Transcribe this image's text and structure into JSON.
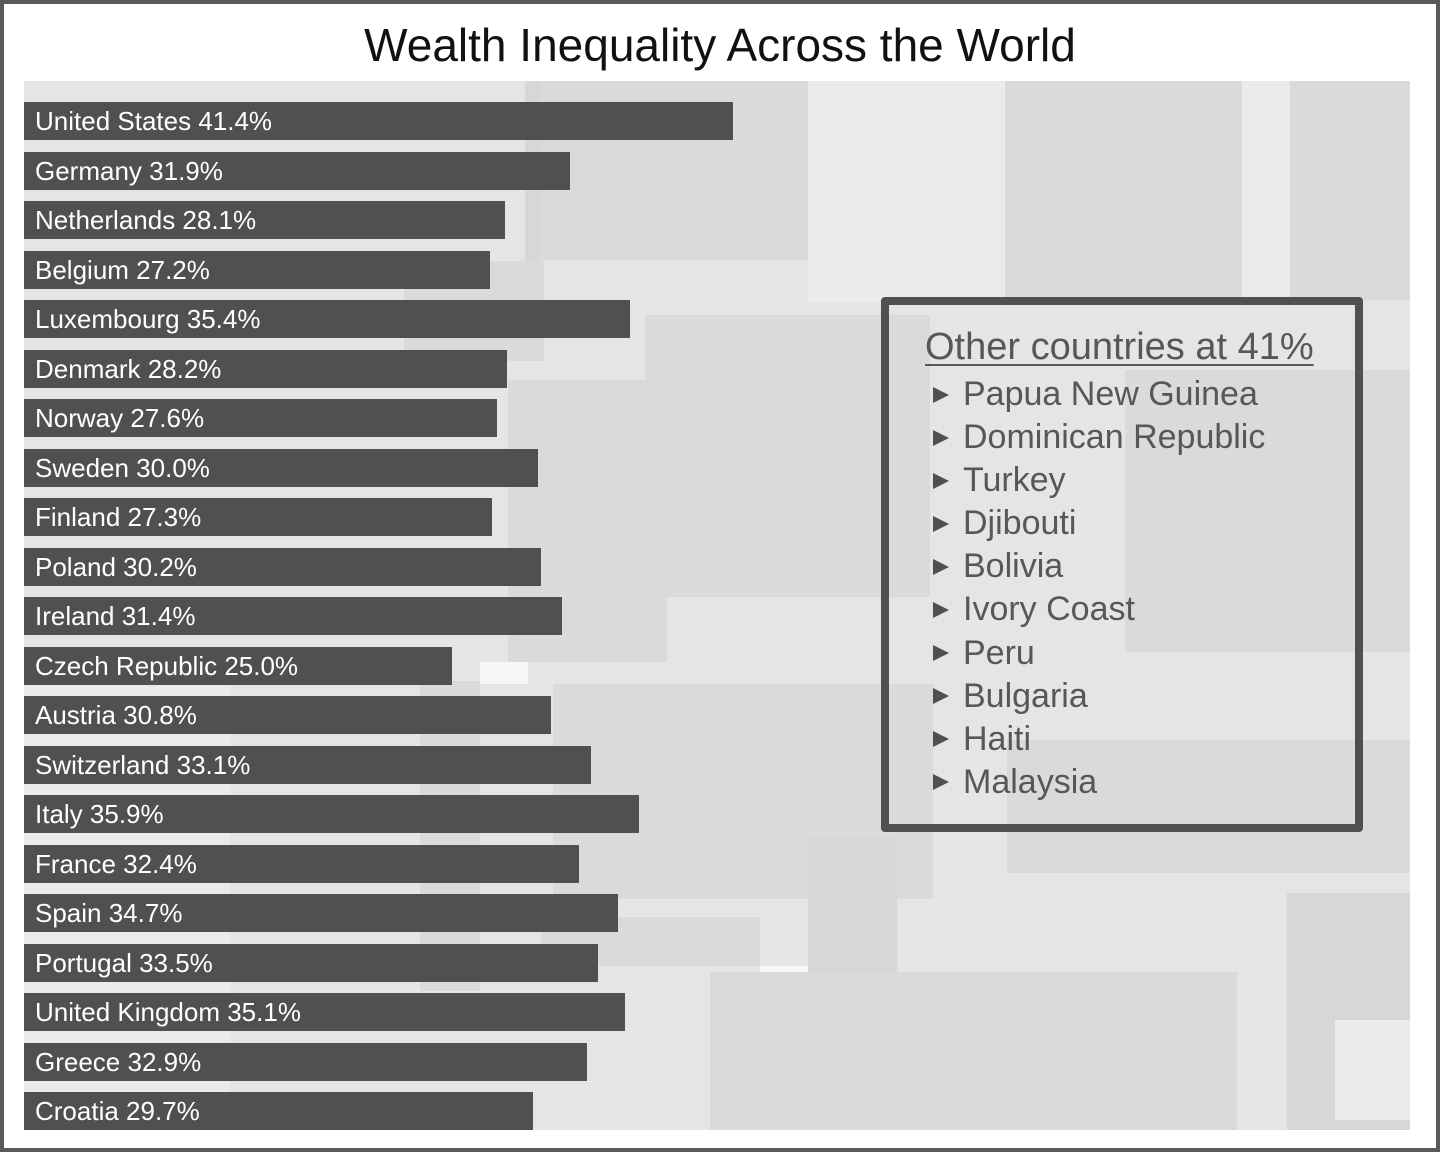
{
  "colors": {
    "bar": "#505050",
    "bar_label": "#ffffff",
    "box_border": "#505050",
    "box_text": "#575757",
    "chart_background": "#e5e5e5"
  },
  "chart_data": {
    "type": "bar",
    "orientation": "horizontal",
    "title": "Wealth Inequality Across the World",
    "categories": [
      "United States",
      "Germany",
      "Netherlands",
      "Belgium",
      "Luxembourg",
      "Denmark",
      "Norway",
      "Sweden",
      "Finland",
      "Poland",
      "Ireland",
      "Czech Republic",
      "Austria",
      "Switzerland",
      "Italy",
      "France",
      "Spain",
      "Portugal",
      "United Kingdom",
      "Greece",
      "Croatia"
    ],
    "values": [
      41.4,
      31.9,
      28.1,
      27.2,
      35.4,
      28.2,
      27.6,
      30.0,
      27.3,
      30.2,
      31.4,
      25.0,
      30.8,
      33.1,
      35.9,
      32.4,
      34.7,
      33.5,
      35.1,
      32.9,
      29.7
    ],
    "value_suffix": "%",
    "grid": false,
    "legend": "none",
    "annotation": {
      "title": "Other countries at 41%",
      "items": [
        "Papua New Guinea",
        "Dominican Republic",
        "Turkey",
        "Djibouti",
        "Bolivia",
        "Ivory Coast",
        "Peru",
        "Bulgaria",
        "Haiti",
        "Malaysia"
      ]
    }
  }
}
